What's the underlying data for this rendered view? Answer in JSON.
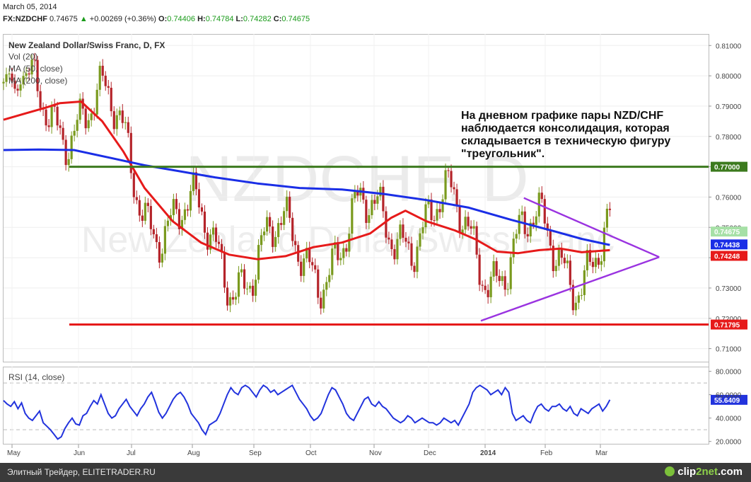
{
  "header": {
    "date": "March 05, 2014",
    "symbol": "FX:NZDCHF",
    "last": "0.74675",
    "change": "+0.00269 (+0.36%)",
    "o_label": "O:",
    "o": "0.74406",
    "h_label": "H:",
    "h": "0.74784",
    "l_label": "L:",
    "l": "0.74282",
    "c_label": "C:",
    "c": "0.74675"
  },
  "legend": {
    "title": "New Zealand Dollar/Swiss Franc, D, FX",
    "vol": "Vol (20)",
    "ma50": "MA (50, close)",
    "ma200": "MA (200, close)"
  },
  "watermark": {
    "line1": "NZDCHF, D",
    "line2": "New Zealand Dollar/Swiss Franc"
  },
  "annotation": {
    "lines": [
      "На дневном графике пары NZD/CHF",
      "наблюдается консолидация, которая",
      "складывается в техническую фигуру",
      "\"треугольник\"."
    ]
  },
  "rsi": {
    "label": "RSI (14, close)",
    "value": "55.6409",
    "levels": [
      70,
      30
    ]
  },
  "colors": {
    "ma50": "#e61a1a",
    "ma200": "#1a2ee6",
    "resistance": "#3c7a1e",
    "support": "#e61a1a",
    "triangle": "#9a33e0",
    "rsi": "#2233dd",
    "candle_up": "#7a9a1e",
    "candle_down": "#b5242a"
  },
  "footer": {
    "source": "Элитный Трейдер, ELITETRADER.RU",
    "logo_a": "clip",
    "logo_b": "2net",
    "logo_c": ".com"
  },
  "chart_data": [
    {
      "type": "candlestick",
      "title": "New Zealand Dollar/Swiss Franc, D, FX",
      "x_ticks": [
        "May",
        "Jun",
        "Jul",
        "Aug",
        "Sep",
        "Oct",
        "Nov",
        "Dec",
        "2014",
        "Feb",
        "Mar"
      ],
      "y_ticks": [
        "0.71000",
        "0.72000",
        "0.73000",
        "0.74000",
        "0.75000",
        "0.76000",
        "0.77000",
        "0.78000",
        "0.79000",
        "0.80000",
        "0.81000"
      ],
      "ylim": [
        0.7057,
        0.8138
      ],
      "price_labels": [
        {
          "value": "0.77000",
          "color": "#3c7a1e"
        },
        {
          "value": "0.74675",
          "color": "#a6e0a6"
        },
        {
          "value": "0.74438",
          "color": "#1a2ee6"
        },
        {
          "value": "0.74248",
          "color": "#e61a1a"
        },
        {
          "value": "0.71795",
          "color": "#e61a1a"
        }
      ],
      "horizontal_levels": [
        {
          "name": "resistance",
          "value": 0.77,
          "from_month": "Jun"
        },
        {
          "name": "support",
          "value": 0.71795,
          "from_month": "Jun"
        }
      ],
      "series": [
        {
          "name": "MA (50, close)",
          "points": [
            [
              0,
              0.7855
            ],
            [
              0.03,
              0.7875
            ],
            [
              0.06,
              0.7895
            ],
            [
              0.08,
              0.791
            ],
            [
              0.11,
              0.7915
            ],
            [
              0.14,
              0.785
            ],
            [
              0.17,
              0.775
            ],
            [
              0.2,
              0.763
            ],
            [
              0.24,
              0.752
            ],
            [
              0.28,
              0.745
            ],
            [
              0.32,
              0.741
            ],
            [
              0.36,
              0.7395
            ],
            [
              0.4,
              0.7405
            ],
            [
              0.44,
              0.7435
            ],
            [
              0.48,
              0.745
            ],
            [
              0.52,
              0.748
            ],
            [
              0.55,
              0.7532
            ],
            [
              0.57,
              0.7555
            ],
            [
              0.6,
              0.752
            ],
            [
              0.64,
              0.749
            ],
            [
              0.67,
              0.746
            ],
            [
              0.7,
              0.742
            ],
            [
              0.73,
              0.7415
            ],
            [
              0.76,
              0.7425
            ],
            [
              0.79,
              0.743
            ],
            [
              0.82,
              0.7418
            ],
            [
              0.86,
              0.7425
            ]
          ]
        },
        {
          "name": "MA (200, close)",
          "points": [
            [
              0,
              0.7755
            ],
            [
              0.05,
              0.7757
            ],
            [
              0.1,
              0.7755
            ],
            [
              0.15,
              0.773
            ],
            [
              0.2,
              0.7705
            ],
            [
              0.25,
              0.7685
            ],
            [
              0.3,
              0.7665
            ],
            [
              0.36,
              0.7645
            ],
            [
              0.42,
              0.763
            ],
            [
              0.48,
              0.7625
            ],
            [
              0.54,
              0.761
            ],
            [
              0.6,
              0.759
            ],
            [
              0.66,
              0.7565
            ],
            [
              0.72,
              0.7525
            ],
            [
              0.78,
              0.7488
            ],
            [
              0.82,
              0.7462
            ],
            [
              0.86,
              0.7442
            ]
          ]
        },
        {
          "name": "triangle-upper",
          "points": [
            [
              0.738,
              0.7597
            ],
            [
              0.93,
              0.7402
            ]
          ]
        },
        {
          "name": "triangle-lower",
          "points": [
            [
              0.677,
              0.7192
            ],
            [
              0.93,
              0.7402
            ]
          ]
        }
      ]
    },
    {
      "type": "line",
      "title": "RSI (14, close)",
      "x_ticks": [
        "May",
        "Jun",
        "Jul",
        "Aug",
        "Sep",
        "Oct",
        "Nov",
        "Dec",
        "2014",
        "Feb",
        "Mar"
      ],
      "y_ticks": [
        "20.0000",
        "40.0000",
        "60.0000",
        "80.0000"
      ],
      "ylim": [
        18,
        84
      ],
      "levels": [
        70,
        30
      ],
      "series": [
        {
          "name": "RSI (14, close)",
          "values": [
            55,
            52,
            50,
            54,
            48,
            53,
            44,
            40,
            38,
            42,
            46,
            36,
            33,
            30,
            26,
            22,
            24,
            31,
            36,
            40,
            35,
            34,
            42,
            44,
            50,
            55,
            52,
            60,
            52,
            44,
            40,
            42,
            48,
            52,
            56,
            50,
            46,
            42,
            48,
            52,
            58,
            62,
            54,
            45,
            40,
            44,
            50,
            56,
            60,
            62,
            58,
            52,
            44,
            40,
            36,
            30,
            26,
            34,
            36,
            38,
            44,
            52,
            60,
            66,
            62,
            60,
            66,
            68,
            66,
            62,
            58,
            64,
            68,
            66,
            62,
            64,
            60,
            62,
            64,
            66,
            68,
            62,
            56,
            52,
            48,
            42,
            38,
            40,
            44,
            52,
            60,
            66,
            64,
            58,
            52,
            44,
            40,
            38,
            44,
            50,
            56,
            58,
            52,
            50,
            54,
            50,
            48,
            44,
            40,
            38,
            36,
            38,
            42,
            40,
            36,
            38,
            40,
            38,
            36,
            36,
            34,
            36,
            40,
            38,
            36,
            38,
            34,
            40,
            46,
            52,
            62,
            66,
            68,
            66,
            64,
            60,
            62,
            64,
            60,
            66,
            62,
            44,
            38,
            40,
            42,
            38,
            36,
            44,
            50,
            52,
            48,
            46,
            50,
            50,
            52,
            48,
            46,
            50,
            44,
            42,
            48,
            46,
            44,
            48,
            50,
            52,
            46,
            50,
            55.6
          ]
        }
      ]
    }
  ]
}
